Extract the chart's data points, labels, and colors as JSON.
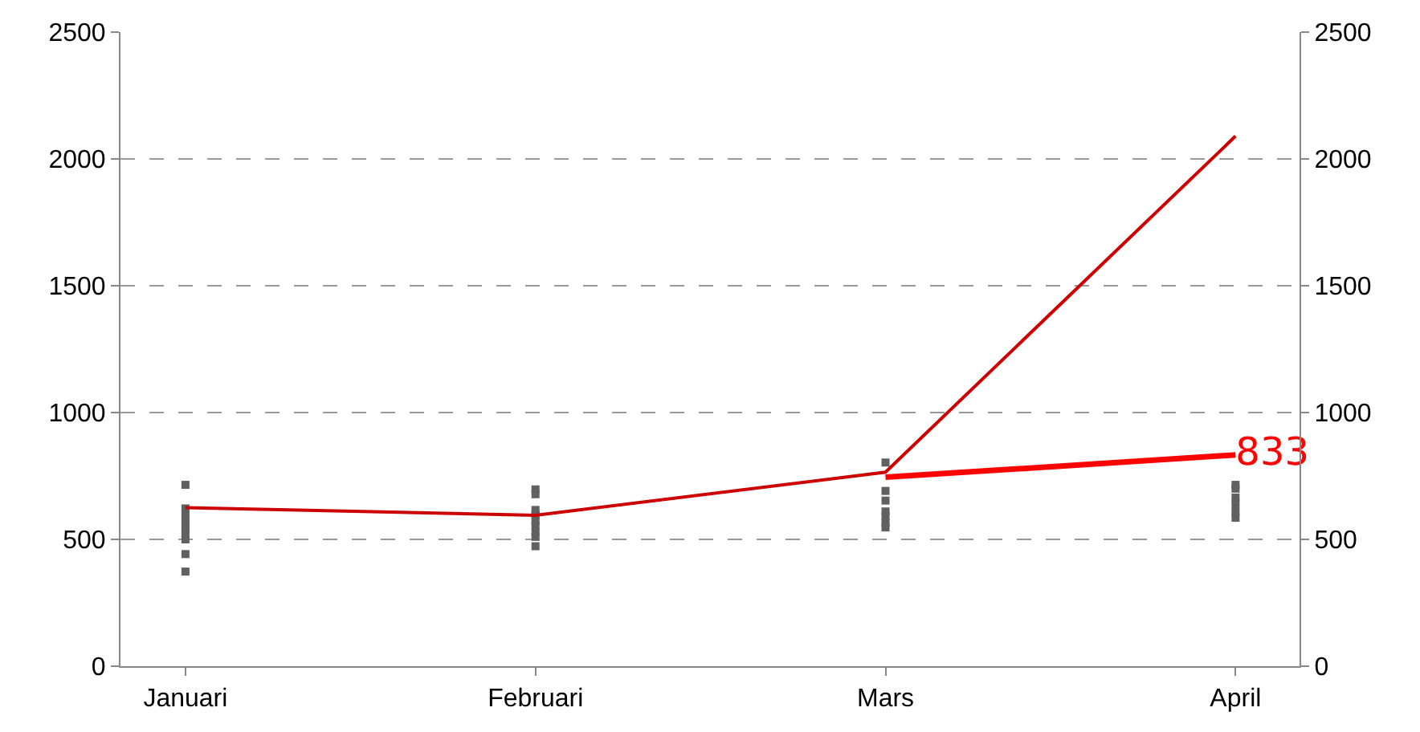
{
  "chart_data": {
    "type": "line",
    "categories": [
      "Januari",
      "Februari",
      "Mars",
      "April"
    ],
    "ylim": [
      0,
      2500
    ],
    "yticks": [
      0,
      500,
      1000,
      1500,
      2000,
      2500
    ],
    "y2lim": [
      0,
      2500
    ],
    "y2ticks": [
      0,
      500,
      1000,
      1500,
      2000,
      2500
    ],
    "grid": "y",
    "series": [
      {
        "type": "scatter",
        "color": "#606060",
        "x": [
          "Januari",
          "Januari",
          "Januari",
          "Januari",
          "Januari",
          "Januari",
          "Januari",
          "Januari",
          "Januari",
          "Januari",
          "Februari",
          "Februari",
          "Februari",
          "Februari",
          "Februari",
          "Februari",
          "Februari",
          "Februari",
          "Februari",
          "Mars",
          "Mars",
          "Mars",
          "Mars",
          "Mars",
          "Mars",
          "Mars",
          "April",
          "April",
          "April",
          "April",
          "April",
          "April"
        ],
        "values": [
          715,
          622,
          600,
          578,
          560,
          540,
          520,
          500,
          442,
          373,
          697,
          678,
          616,
          597,
          572,
          553,
          529,
          510,
          473,
          803,
          691,
          653,
          610,
          591,
          566,
          547,
          715,
          700,
          665,
          640,
          610,
          585
        ]
      },
      {
        "color": "#cc0000",
        "values": [
          625,
          595,
          765,
          2090
        ]
      },
      {
        "type": "line",
        "color": "#ff0000",
        "x": [
          "Mars",
          "April"
        ],
        "values": [
          745,
          833
        ],
        "value_labels": [
          null,
          "833"
        ]
      }
    ]
  }
}
